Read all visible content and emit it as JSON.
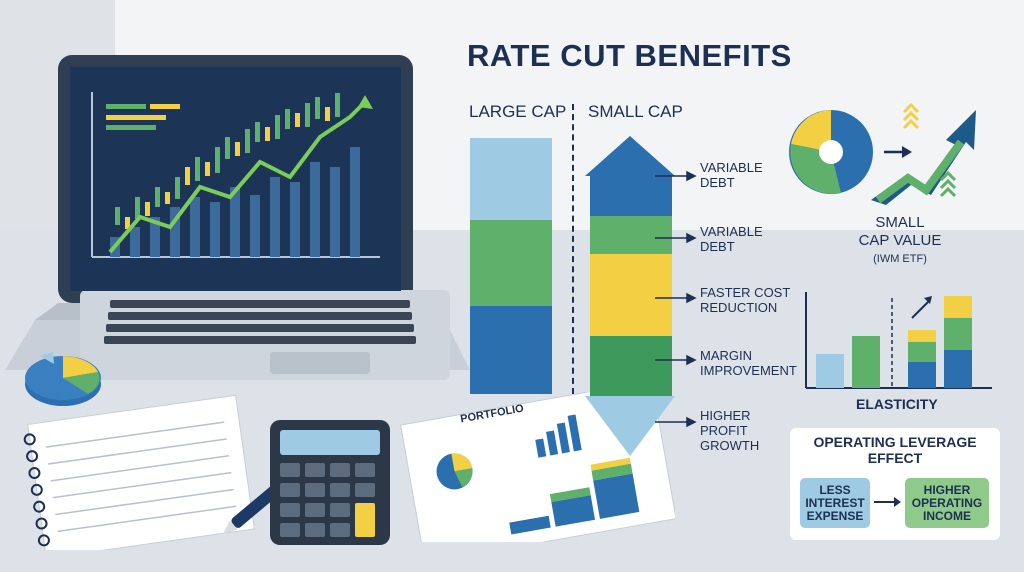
{
  "title": "RATE CUT BENEFITS",
  "columns": {
    "large_cap": "LARGE CAP",
    "small_cap": "SMALL CAP"
  },
  "benefits": [
    {
      "line1": "VARIABLE",
      "line2": "DEBT"
    },
    {
      "line1": "VARIABLE",
      "line2": "DEBT"
    },
    {
      "line1": "FASTER COST",
      "line2": "REDUCTION"
    },
    {
      "line1": "MARGIN",
      "line2": "IMPROVEMENT"
    },
    {
      "line1": "HIGHER",
      "line2": "PROFIT",
      "line3": "GROWTH"
    }
  ],
  "small_cap_value": {
    "line1": "SMALL",
    "line2": "CAP VALUE",
    "line3": "(IWM ETF)"
  },
  "elasticity_label": "ELASTICITY",
  "operating_leverage": {
    "title_line1": "OPERATING LEVERAGE",
    "title_line2": "EFFECT",
    "left_line1": "LESS",
    "left_line2": "INTEREST",
    "left_line3": "EXPENSE",
    "right_line1": "HIGHER",
    "right_line2": "OPERATING",
    "right_line3": "INCOME"
  },
  "portfolio_label": "PORTFOLIO",
  "colors": {
    "navy": "#1d2f52",
    "blue": "#2b6fae",
    "light_blue": "#9ecbe3",
    "green": "#5fb06a",
    "yellow": "#f2cf43",
    "dark_green": "#3e9a5c"
  }
}
